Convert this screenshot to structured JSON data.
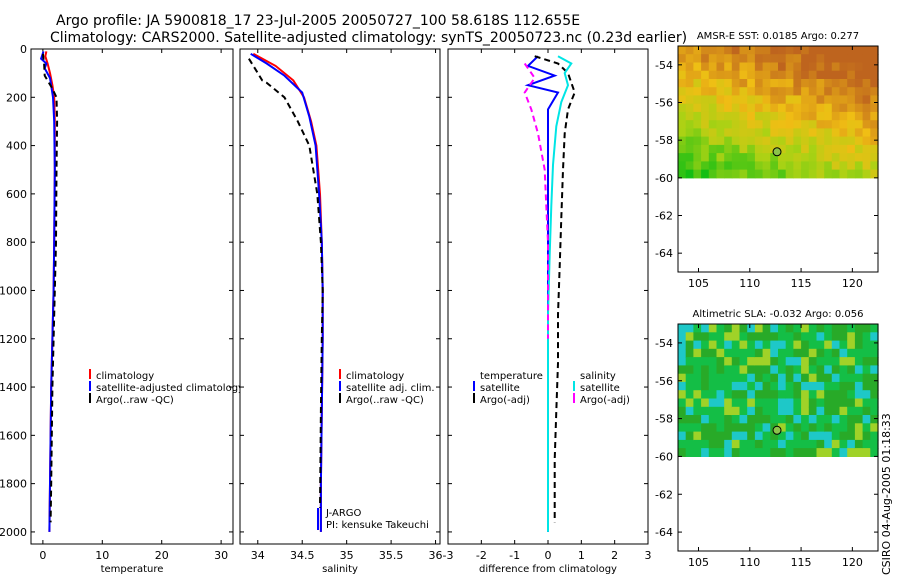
{
  "header": {
    "line1": "Argo profile: JA 5900818_17 23-Jul-2005 20050727_100 58.618S 112.655E",
    "line2": "Climatology: CARS2000. Satellite-adjusted climatology: synTS_20050723.nc (0.23d earlier)"
  },
  "side_label": "CSIRO 04-Aug-2005 01:18:33",
  "colors": {
    "clim": "#ff0000",
    "sat": "#0000ff",
    "argo": "#000000",
    "sal_sat": "#00e5e5",
    "sal_argo": "#ff00ff"
  },
  "chart_data": [
    {
      "type": "line",
      "name": "temperature-profile",
      "xlabel": "temperature",
      "ylabel": "",
      "xlim": [
        -2,
        32
      ],
      "ylim": [
        2050,
        0
      ],
      "xticks": [
        0,
        10,
        20,
        30
      ],
      "yticks": [
        0,
        200,
        400,
        600,
        800,
        1000,
        1200,
        1400,
        1600,
        1800,
        2000
      ],
      "legend": [
        "climatology",
        "satellite-adjusted climatology",
        "Argo(..raw -QC)"
      ],
      "series": [
        {
          "name": "climatology",
          "color": "#ff0000",
          "dash": "",
          "x": [
            0.6,
            0.4,
            0.8,
            1.2,
            1.6,
            1.9,
            2.0,
            2.0,
            1.9,
            1.8,
            1.6,
            1.4,
            1.3,
            1.2,
            1.1
          ],
          "y": [
            10,
            30,
            60,
            100,
            150,
            200,
            300,
            500,
            800,
            1000,
            1200,
            1400,
            1600,
            1800,
            2000
          ]
        },
        {
          "name": "satellite-adjusted climatology",
          "color": "#0000ff",
          "dash": "",
          "x": [
            0.1,
            -0.3,
            0.6,
            0.3,
            1.2,
            1.7,
            1.9,
            2.0,
            1.9,
            1.8,
            1.6,
            1.4,
            1.3,
            1.2,
            1.1
          ],
          "y": [
            10,
            40,
            60,
            80,
            120,
            200,
            300,
            500,
            800,
            1000,
            1200,
            1400,
            1600,
            1800,
            2000
          ]
        },
        {
          "name": "Argo(..raw -QC)",
          "color": "#000000",
          "dash": "6,4",
          "x": [
            0.0,
            0.2,
            0.3,
            1.5,
            2.3,
            2.4,
            2.3,
            2.2,
            2.0,
            1.8,
            1.6,
            1.5,
            1.4,
            1.3
          ],
          "y": [
            20,
            60,
            110,
            160,
            200,
            300,
            500,
            800,
            1000,
            1200,
            1400,
            1600,
            1800,
            1960
          ]
        }
      ],
      "annotations": []
    },
    {
      "type": "line",
      "name": "salinity-profile",
      "xlabel": "salinity",
      "ylabel": "",
      "xlim": [
        33.8,
        36.05
      ],
      "ylim": [
        2050,
        0
      ],
      "xticks": [
        34,
        34.5,
        35,
        35.5,
        36
      ],
      "yticks": [
        0,
        200,
        400,
        600,
        800,
        1000,
        1200,
        1400,
        1600,
        1800,
        2000
      ],
      "legend": [
        "climatology",
        "satellite adj. clim.",
        "Argo(..raw -QC)"
      ],
      "series": [
        {
          "name": "climatology",
          "color": "#ff0000",
          "dash": "",
          "x": [
            33.95,
            34.2,
            34.4,
            34.52,
            34.6,
            34.66,
            34.7,
            34.72,
            34.73,
            34.73,
            34.72,
            34.71,
            34.71
          ],
          "y": [
            20,
            70,
            130,
            200,
            300,
            400,
            600,
            800,
            1000,
            1200,
            1500,
            1800,
            2000
          ]
        },
        {
          "name": "satellite adj. clim.",
          "color": "#0000ff",
          "dash": "",
          "x": [
            33.92,
            34.1,
            34.3,
            34.5,
            34.58,
            34.65,
            34.69,
            34.72,
            34.73,
            34.73,
            34.72,
            34.71,
            34.71
          ],
          "y": [
            20,
            60,
            110,
            180,
            280,
            400,
            600,
            800,
            1000,
            1200,
            1500,
            1800,
            2000
          ]
        },
        {
          "name": "Argo(..raw -QC)",
          "color": "#000000",
          "dash": "6,4",
          "x": [
            33.9,
            34.0,
            34.05,
            34.1,
            34.3,
            34.45,
            34.58,
            34.67,
            34.71,
            34.73,
            34.72,
            34.71,
            34.7
          ],
          "y": [
            40,
            100,
            130,
            140,
            200,
            300,
            400,
            600,
            800,
            1000,
            1200,
            1500,
            1900
          ]
        }
      ],
      "annotations": [
        "J-ARGO",
        "PI: kensuke Takeuchi"
      ]
    },
    {
      "type": "line",
      "name": "difference-profile",
      "xlabel": "difference from climatology",
      "ylabel": "",
      "xlim": [
        -3,
        3
      ],
      "ylim": [
        2050,
        0
      ],
      "xticks": [
        -3,
        -2,
        -1,
        0,
        1,
        2,
        3
      ],
      "yticks": [
        0,
        200,
        400,
        600,
        800,
        1000,
        1200,
        1400,
        1600,
        1800,
        2000
      ],
      "legend": [
        "temperature",
        "satellite",
        "Argo(-adj)",
        "salinity",
        "satellite",
        "Argo(-adj)"
      ],
      "series": [
        {
          "name": "temperature satellite",
          "color": "#0000ff",
          "dash": "",
          "x": [
            -0.3,
            -0.6,
            0.2,
            -0.6,
            0.3,
            0.0,
            0.0,
            0.0,
            0.0,
            0.0,
            0.0,
            0.0,
            0.0,
            0.0
          ],
          "y": [
            30,
            70,
            110,
            150,
            180,
            250,
            400,
            600,
            800,
            1000,
            1300,
            1600,
            1800,
            2000
          ]
        },
        {
          "name": "temperature Argo(-adj)",
          "color": "#000000",
          "dash": "6,4",
          "x": [
            -0.4,
            0.3,
            0.6,
            0.8,
            0.6,
            0.5,
            0.45,
            0.4,
            0.35,
            0.3,
            0.3,
            0.25,
            0.2,
            0.2
          ],
          "y": [
            30,
            60,
            100,
            180,
            250,
            350,
            500,
            700,
            900,
            1100,
            1300,
            1500,
            1700,
            1960
          ]
        },
        {
          "name": "salinity satellite",
          "color": "#00e5e5",
          "dash": "",
          "x": [
            0.3,
            0.7,
            0.5,
            0.6,
            0.4,
            0.25,
            0.15,
            0.1,
            0.05,
            0.0,
            0.0,
            0.0,
            0.0
          ],
          "y": [
            30,
            60,
            100,
            150,
            220,
            320,
            480,
            650,
            850,
            1100,
            1400,
            1700,
            2000
          ]
        },
        {
          "name": "salinity Argo(-adj)",
          "color": "#ff00ff",
          "dash": "6,4",
          "x": [
            -0.7,
            -0.4,
            -0.7,
            -0.5,
            -0.3,
            -0.1,
            -0.05,
            0.0,
            0.0,
            0.0
          ],
          "y": [
            60,
            120,
            180,
            250,
            350,
            500,
            650,
            800,
            1000,
            1200
          ]
        }
      ],
      "annotations": []
    },
    {
      "type": "heatmap",
      "name": "amsr-e-sst-map",
      "title": "AMSR-E SST: 0.0185 Argo: 0.277",
      "xlim": [
        103,
        122.5
      ],
      "ylim": [
        -65,
        -53
      ],
      "xticks": [
        105,
        110,
        115,
        120
      ],
      "yticks": [
        -54,
        -56,
        -58,
        -60,
        -62,
        -64
      ],
      "data_ylim": [
        -60,
        -53
      ],
      "marker": {
        "lon": 112.655,
        "lat": -58.618
      }
    },
    {
      "type": "heatmap",
      "name": "altimetric-sla-map",
      "title": "Altimetric SLA: -0.032 Argo: 0.056",
      "xlim": [
        103,
        122.5
      ],
      "ylim": [
        -65,
        -53
      ],
      "xticks": [
        105,
        110,
        115,
        120
      ],
      "yticks": [
        -54,
        -56,
        -58,
        -60,
        -62,
        -64
      ],
      "data_ylim": [
        -60,
        -53
      ],
      "marker": {
        "lon": 112.655,
        "lat": -58.618
      }
    }
  ]
}
